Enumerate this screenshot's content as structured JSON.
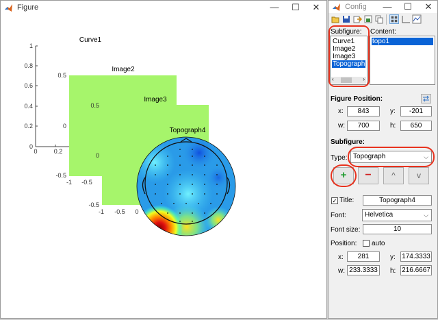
{
  "figure_window": {
    "title": "Figure",
    "controls": {
      "minimize": "—",
      "maximize": "☐",
      "close": "✕"
    },
    "axes": [
      {
        "title": "Curve1",
        "yticks": [
          "1",
          "0.8",
          "0.6",
          "0.4",
          "0.2",
          "0"
        ],
        "xticks": [
          "0",
          "0.2"
        ]
      },
      {
        "title": "Image2",
        "yticks": [
          "0.5",
          "0",
          "-0.5"
        ],
        "xticks": [
          "-1",
          "-0.5"
        ],
        "fill": "#a6f56b"
      },
      {
        "title": "Image3",
        "yticks": [
          "0.5",
          "0",
          "-0.5"
        ],
        "xticks": [
          "-1",
          "-0.5",
          "0"
        ],
        "fill": "#a6f56b"
      },
      {
        "title": "Topograph4"
      }
    ]
  },
  "config_window": {
    "title": "Config",
    "controls": {
      "minimize": "—",
      "maximize": "☐",
      "close": "✕"
    },
    "toolbar_icons": [
      "new-icon",
      "save-icon",
      "import-icon",
      "export-icon",
      "copy-icon",
      "grid-layout-icon",
      "plot-icon",
      "curve-icon"
    ],
    "subfigure_label": "Subfigure:",
    "subfigures": [
      "Curve1",
      "Image2",
      "Image3",
      "Topograph"
    ],
    "selected_subfigure": "Topograph",
    "content_label": "Content:",
    "contents": [
      "topo1"
    ],
    "figure_position_label": "Figure Position:",
    "figure_position": {
      "x_label": "x:",
      "x": "843",
      "y_label": "y:",
      "y": "-201",
      "w_label": "w:",
      "w": "700",
      "h_label": "h:",
      "h": "650"
    },
    "subfigure_section_label": "Subfigure:",
    "type_label": "Type:",
    "type_value": "Topograph",
    "buttons": {
      "add": "+",
      "remove": "−",
      "up": "^",
      "down": "v"
    },
    "title_check": {
      "label": "Title:",
      "checked": true,
      "value": "Topograph4"
    },
    "font_label": "Font:",
    "font_value": "Helvetica",
    "font_size_label": "Font size:",
    "font_size": "10",
    "position_label": "Position:",
    "auto_label": "auto",
    "auto_checked": false,
    "position": {
      "x_label": "x:",
      "x": "281",
      "y_label": "y:",
      "y": "174.3333",
      "w_label": "w:",
      "w": "233.3333",
      "h_label": "h:",
      "h": "216.6667"
    },
    "colors": {
      "selection": "#0a63d6",
      "add_icon": "#1a9a2a",
      "remove_icon": "#d02020",
      "highlight_ring": "#e8321e"
    }
  }
}
